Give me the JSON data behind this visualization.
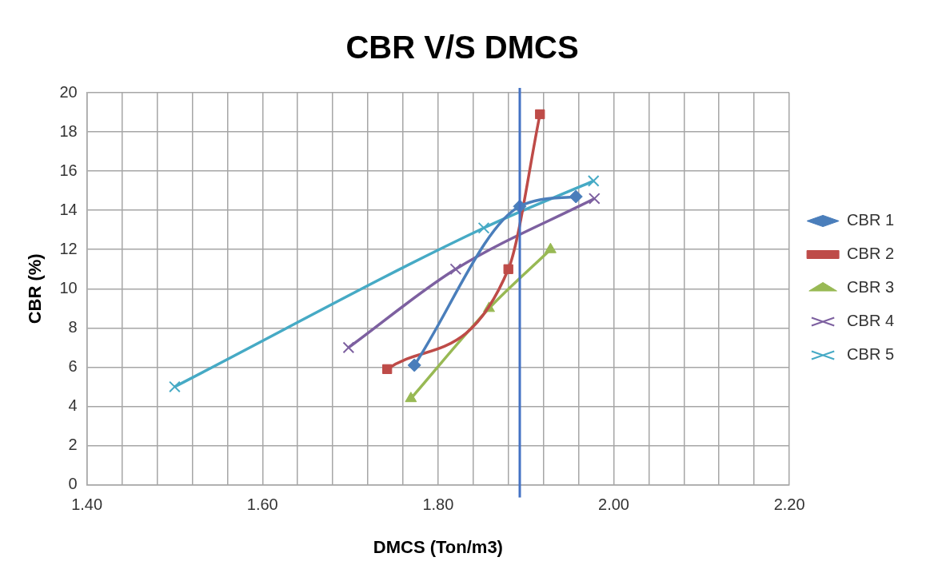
{
  "chart_data": {
    "type": "line",
    "title": "CBR V/S DMCS",
    "xlabel": "DMCS (Ton/m3)",
    "ylabel": "CBR (%)",
    "series": [
      {
        "name": "CBR 1",
        "color": "#4a7ebb",
        "marker": "diamond",
        "x": [
          1.773,
          1.893,
          1.957
        ],
        "values": [
          6.1,
          14.2,
          14.7
        ]
      },
      {
        "name": "CBR 2",
        "color": "#be4b48",
        "marker": "square",
        "x": [
          1.742,
          1.88,
          1.916
        ],
        "values": [
          5.9,
          11.0,
          18.9
        ]
      },
      {
        "name": "CBR 3",
        "color": "#98b954",
        "marker": "triangle",
        "x": [
          1.769,
          1.858,
          1.928
        ],
        "values": [
          4.4,
          9.0,
          12.0
        ]
      },
      {
        "name": "CBR 4",
        "color": "#7d60a0",
        "marker": "cross",
        "x": [
          1.698,
          1.82,
          1.978
        ],
        "values": [
          7.0,
          11.0,
          14.6
        ]
      },
      {
        "name": "CBR 5",
        "color": "#46aac5",
        "marker": "cross",
        "x": [
          1.5,
          1.852,
          1.977
        ],
        "values": [
          5.0,
          13.1,
          15.5
        ]
      }
    ],
    "ref_lines": [
      {
        "axis": "x",
        "value": 1.893,
        "color": "#4472c4"
      }
    ],
    "xlim": [
      1.4,
      2.2
    ],
    "xticks": [
      {
        "value": 1.4,
        "label": "1.40"
      },
      {
        "value": 1.44,
        "label": null
      },
      {
        "value": 1.48,
        "label": null
      },
      {
        "value": 1.52,
        "label": null
      },
      {
        "value": 1.56,
        "label": null
      },
      {
        "value": 1.6,
        "label": "1.60"
      },
      {
        "value": 1.64,
        "label": null
      },
      {
        "value": 1.68,
        "label": null
      },
      {
        "value": 1.72,
        "label": null
      },
      {
        "value": 1.76,
        "label": null
      },
      {
        "value": 1.8,
        "label": "1.80"
      },
      {
        "value": 1.84,
        "label": null
      },
      {
        "value": 1.88,
        "label": null
      },
      {
        "value": 1.92,
        "label": null
      },
      {
        "value": 1.96,
        "label": null
      },
      {
        "value": 2.0,
        "label": "2.00"
      },
      {
        "value": 2.04,
        "label": null
      },
      {
        "value": 2.08,
        "label": null
      },
      {
        "value": 2.12,
        "label": null
      },
      {
        "value": 2.16,
        "label": null
      },
      {
        "value": 2.2,
        "label": "2.20"
      }
    ],
    "ylim": [
      0,
      20
    ],
    "yticks": [
      0,
      2,
      4,
      6,
      8,
      10,
      12,
      14,
      16,
      18,
      20
    ],
    "grid": true,
    "legend": "right",
    "line_style": "solid"
  }
}
